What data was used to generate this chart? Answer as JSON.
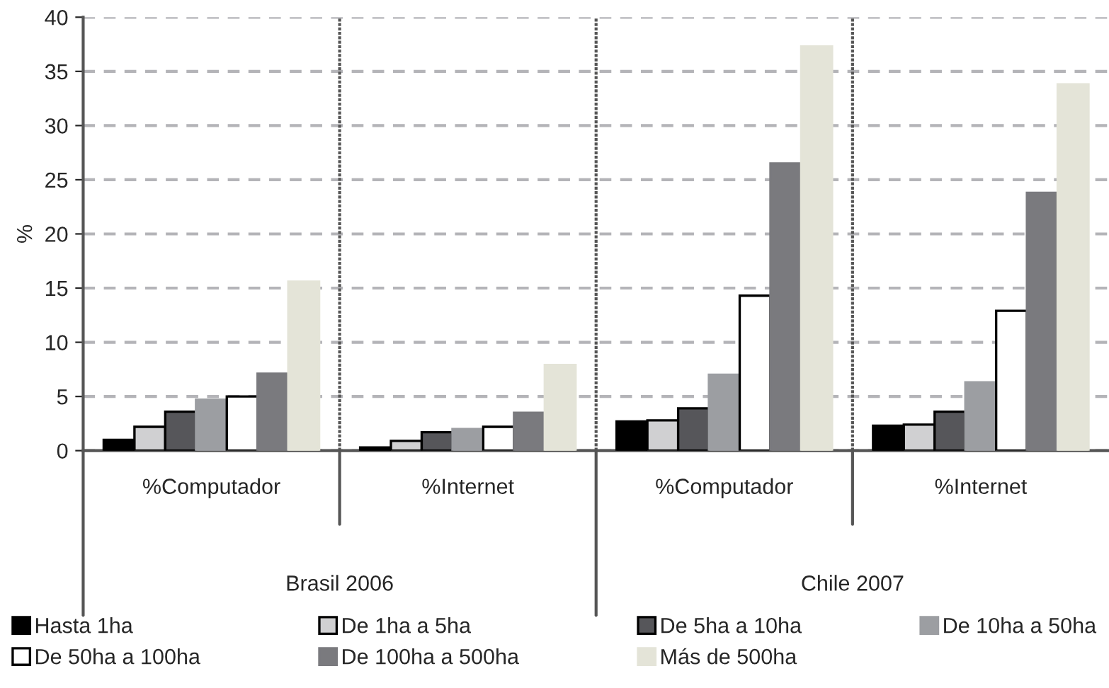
{
  "chart_data": {
    "type": "bar",
    "ylabel": "%",
    "categories": [
      "%Computador",
      "%Internet",
      "%Computador",
      "%Internet"
    ],
    "annotations": [
      "Brasil 2006",
      "Chile 2007"
    ],
    "series": [
      {
        "name": "Hasta 1ha",
        "color": "#000000",
        "values": [
          1.0,
          0.3,
          2.7,
          2.3
        ]
      },
      {
        "name": "De 1ha a 5ha",
        "color": "#d0d0d2",
        "values": [
          2.2,
          0.9,
          2.8,
          2.4
        ]
      },
      {
        "name": "De 5ha a 10ha",
        "color": "#56565a",
        "values": [
          3.6,
          1.7,
          3.9,
          3.6
        ]
      },
      {
        "name": "De 10ha a 50ha",
        "color": "#9c9ea2",
        "values": [
          4.7,
          2.0,
          7.0,
          6.3
        ]
      },
      {
        "name": "De 50ha a 100ha",
        "color": "#ffffff",
        "values": [
          5.0,
          2.2,
          14.3,
          12.9
        ]
      },
      {
        "name": "De 100ha a 500ha",
        "color": "#7a7a7e",
        "values": [
          7.1,
          3.5,
          26.5,
          23.8
        ]
      },
      {
        "name": "Más de 500ha",
        "color": "#e4e4d8",
        "values": [
          15.6,
          7.9,
          37.3,
          33.8
        ]
      }
    ],
    "ylim": [
      0,
      40
    ],
    "yticks": [
      0,
      5,
      10,
      15,
      20,
      25,
      30,
      35,
      40
    ],
    "grid": "y",
    "legend": "bottom"
  }
}
